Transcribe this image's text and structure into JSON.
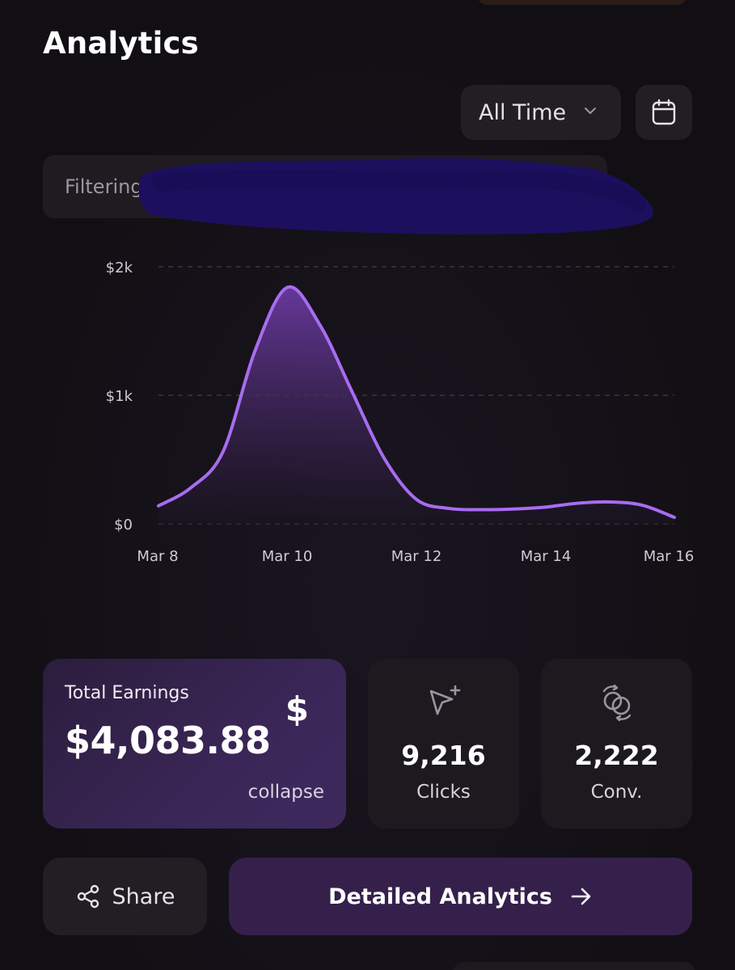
{
  "header": {
    "title": "Analytics"
  },
  "range_select": {
    "value": "All Time",
    "icon": "chevron-down-icon"
  },
  "calendar": {
    "icon": "calendar-icon"
  },
  "filter": {
    "label": "Filtering",
    "clear_icon": "close-icon",
    "redacted": true
  },
  "chart_data": {
    "type": "area",
    "title": "",
    "xlabel": "",
    "ylabel": "",
    "x": [
      "Mar 8",
      "Mar 8.5",
      "Mar 9",
      "Mar 9.5",
      "Mar 10",
      "Mar 10.5",
      "Mar 11",
      "Mar 11.5",
      "Mar 12",
      "Mar 12.5",
      "Mar 13",
      "Mar 13.5",
      "Mar 14",
      "Mar 14.5",
      "Mar 15",
      "Mar 15.5",
      "Mar 16"
    ],
    "xticks": [
      "Mar 8",
      "Mar 10",
      "Mar 12",
      "Mar 14",
      "Mar 16"
    ],
    "xtick_positions": [
      0,
      2,
      4,
      6,
      8
    ],
    "series": [
      {
        "name": "Earnings",
        "values": [
          140,
          280,
          560,
          1350,
          1840,
          1550,
          1030,
          510,
          190,
          120,
          110,
          115,
          130,
          160,
          170,
          145,
          50
        ]
      }
    ],
    "yticks": [
      "$2k",
      "$1k",
      "$0"
    ],
    "ytick_values": [
      2000,
      1000,
      0
    ],
    "ylim": [
      0,
      2000
    ],
    "grid": true,
    "colors": {
      "line": "#a86cf0",
      "fill_top": "#6a3aa0",
      "fill_bottom": "#1a1420"
    }
  },
  "stats": {
    "earnings": {
      "label": "Total Earnings",
      "value": "$4,083.88",
      "symbol": "$",
      "toggle": "collapse"
    },
    "clicks": {
      "value": "9,216",
      "label": "Clicks",
      "icon": "cursor-plus-icon"
    },
    "conversions": {
      "value": "2,222",
      "label": "Conv.",
      "icon": "convert-rings-icon"
    }
  },
  "actions": {
    "share": {
      "label": "Share",
      "icon": "share-icon"
    },
    "detailed": {
      "label": "Detailed Analytics",
      "icon": "arrow-right-icon"
    }
  },
  "colors": {
    "accent": "#a86cf0",
    "background": "#131014",
    "card": "#1d1a1f",
    "primary_button": "#35204c"
  }
}
